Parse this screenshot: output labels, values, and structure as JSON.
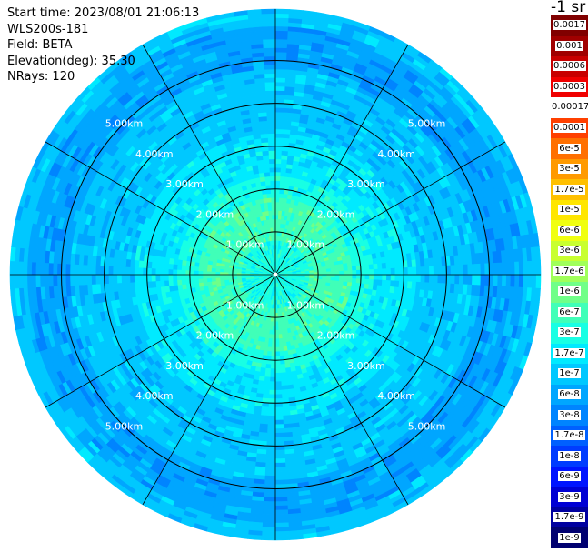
{
  "info": {
    "start_time": "Start time: 2023/08/01 21:06:13",
    "instrument": "WLS200s-181",
    "field": "Field: BETA",
    "elevation": "Elevation(deg): 35.30",
    "nrays": "NRays: 120"
  },
  "colorbar_title": "-1 sr",
  "colorbar": [
    {
      "label": "0.0017",
      "color": "#800000"
    },
    {
      "label": "0.001",
      "color": "#a00000"
    },
    {
      "label": "0.0006",
      "color": "#c80000"
    },
    {
      "label": "0.0003",
      "color": "#f00000"
    },
    {
      "label": "0.00017",
      "color": "#ffffff"
    },
    {
      "label": "0.0001",
      "color": "#ff4000"
    },
    {
      "label": "6e-5",
      "color": "#ff7000"
    },
    {
      "label": "3e-5",
      "color": "#ff9a00"
    },
    {
      "label": "1.7e-5",
      "color": "#ffc000"
    },
    {
      "label": "1e-5",
      "color": "#ffe600"
    },
    {
      "label": "6e-6",
      "color": "#f0ff10"
    },
    {
      "label": "3e-6",
      "color": "#c8ff30"
    },
    {
      "label": "1.7e-6",
      "color": "#a0ff5a"
    },
    {
      "label": "1e-6",
      "color": "#70ff88"
    },
    {
      "label": "6e-7",
      "color": "#40ffb8"
    },
    {
      "label": "3e-7",
      "color": "#18ffe4"
    },
    {
      "label": "1.7e-7",
      "color": "#00eaff"
    },
    {
      "label": "1e-7",
      "color": "#00c8ff"
    },
    {
      "label": "6e-8",
      "color": "#00a6ff"
    },
    {
      "label": "3e-8",
      "color": "#0084ff"
    },
    {
      "label": "1.7e-8",
      "color": "#0060ff"
    },
    {
      "label": "1e-8",
      "color": "#003cff"
    },
    {
      "label": "6e-9",
      "color": "#0014ff"
    },
    {
      "label": "3e-9",
      "color": "#0000d4"
    },
    {
      "label": "1.7e-9",
      "color": "#0000a0"
    },
    {
      "label": "1e-9",
      "color": "#000070"
    }
  ],
  "chart_data": {
    "type": "heatmap",
    "projection": "polar (PPI scan)",
    "field": "BETA",
    "elevation_deg": 35.3,
    "nrays": 120,
    "range_rings_km": [
      1,
      2,
      3,
      4,
      5
    ],
    "max_range_km": 6.2,
    "ring_labels": [
      "1.00km",
      "2.00km",
      "3.00km",
      "4.00km",
      "5.00km"
    ],
    "spoke_count": 12,
    "radial_profile": [
      {
        "range_km": 0.5,
        "value": "3e-7"
      },
      {
        "range_km": 1.0,
        "value": "6e-7"
      },
      {
        "range_km": 1.5,
        "value": "6e-7"
      },
      {
        "range_km": 2.0,
        "value": "3e-7"
      },
      {
        "range_km": 2.5,
        "value": "1.7e-7"
      },
      {
        "range_km": 3.0,
        "value": "1.7e-7"
      },
      {
        "range_km": 3.5,
        "value": "1e-7"
      },
      {
        "range_km": 4.0,
        "value": "1e-7"
      },
      {
        "range_km": 4.5,
        "value": "1e-7"
      },
      {
        "range_km": 5.0,
        "value": "6e-8"
      },
      {
        "range_km": 5.5,
        "value": "6e-8"
      },
      {
        "range_km": 6.0,
        "value": "1e-7"
      }
    ],
    "colormap_bg": "#ffffff",
    "ring_color": "#000000",
    "label_color": "#ffffff"
  }
}
